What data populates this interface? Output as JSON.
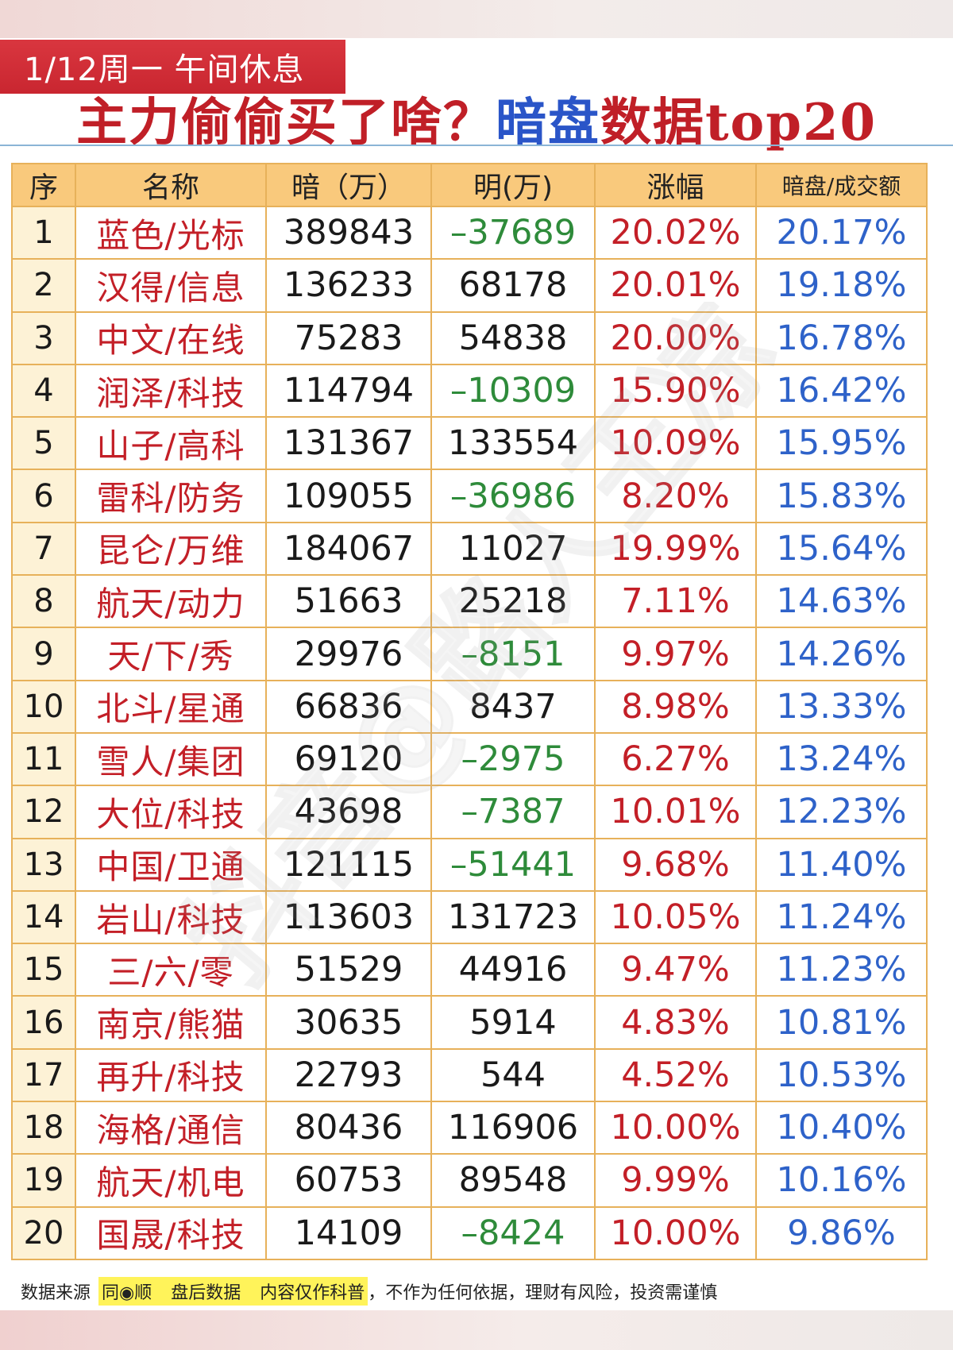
{
  "header": {
    "date_tag": "1/12周一 午间休息",
    "title_part1": "主力偷偷买了啥？",
    "title_part2": "暗盘",
    "title_part3": "数据top20"
  },
  "table": {
    "columns": [
      "序",
      "名称",
      "暗（万）",
      "明(万)",
      "涨幅",
      "暗盘/成交额"
    ],
    "rows": [
      {
        "rank": "1",
        "name": "蓝色/光标",
        "dark": "389843",
        "lit": "–37689",
        "lit_negative": true,
        "change": "20.02%",
        "ratio": "20.17%"
      },
      {
        "rank": "2",
        "name": "汉得/信息",
        "dark": "136233",
        "lit": "68178",
        "lit_negative": false,
        "change": "20.01%",
        "ratio": "19.18%"
      },
      {
        "rank": "3",
        "name": "中文/在线",
        "dark": "75283",
        "lit": "54838",
        "lit_negative": false,
        "change": "20.00%",
        "ratio": "16.78%"
      },
      {
        "rank": "4",
        "name": "润泽/科技",
        "dark": "114794",
        "lit": "–10309",
        "lit_negative": true,
        "change": "15.90%",
        "ratio": "16.42%"
      },
      {
        "rank": "5",
        "name": "山子/高科",
        "dark": "131367",
        "lit": "133554",
        "lit_negative": false,
        "change": "10.09%",
        "ratio": "15.95%"
      },
      {
        "rank": "6",
        "name": "雷科/防务",
        "dark": "109055",
        "lit": "–36986",
        "lit_negative": true,
        "change": "8.20%",
        "ratio": "15.83%"
      },
      {
        "rank": "7",
        "name": "昆仑/万维",
        "dark": "184067",
        "lit": "11027",
        "lit_negative": false,
        "change": "19.99%",
        "ratio": "15.64%"
      },
      {
        "rank": "8",
        "name": "航天/动力",
        "dark": "51663",
        "lit": "25218",
        "lit_negative": false,
        "change": "7.11%",
        "ratio": "14.63%"
      },
      {
        "rank": "9",
        "name": "天/下/秀",
        "dark": "29976",
        "lit": "–8151",
        "lit_negative": true,
        "change": "9.97%",
        "ratio": "14.26%"
      },
      {
        "rank": "10",
        "name": "北斗/星通",
        "dark": "66836",
        "lit": "8437",
        "lit_negative": false,
        "change": "8.98%",
        "ratio": "13.33%"
      },
      {
        "rank": "11",
        "name": "雪人/集团",
        "dark": "69120",
        "lit": "–2975",
        "lit_negative": true,
        "change": "6.27%",
        "ratio": "13.24%"
      },
      {
        "rank": "12",
        "name": "大位/科技",
        "dark": "43698",
        "lit": "–7387",
        "lit_negative": true,
        "change": "10.01%",
        "ratio": "12.23%"
      },
      {
        "rank": "13",
        "name": "中国/卫通",
        "dark": "121115",
        "lit": "–51441",
        "lit_negative": true,
        "change": "9.68%",
        "ratio": "11.40%"
      },
      {
        "rank": "14",
        "name": "岩山/科技",
        "dark": "113603",
        "lit": "131723",
        "lit_negative": false,
        "change": "10.05%",
        "ratio": "11.24%"
      },
      {
        "rank": "15",
        "name": "三/六/零",
        "dark": "51529",
        "lit": "44916",
        "lit_negative": false,
        "change": "9.47%",
        "ratio": "11.23%"
      },
      {
        "rank": "16",
        "name": "南京/熊猫",
        "dark": "30635",
        "lit": "5914",
        "lit_negative": false,
        "change": "4.83%",
        "ratio": "10.81%"
      },
      {
        "rank": "17",
        "name": "再升/科技",
        "dark": "22793",
        "lit": "544",
        "lit_negative": false,
        "change": "4.52%",
        "ratio": "10.53%"
      },
      {
        "rank": "18",
        "name": "海格/通信",
        "dark": "80436",
        "lit": "116906",
        "lit_negative": false,
        "change": "10.00%",
        "ratio": "10.40%"
      },
      {
        "rank": "19",
        "name": "航天/机电",
        "dark": "60753",
        "lit": "89548",
        "lit_negative": false,
        "change": "9.99%",
        "ratio": "10.16%"
      },
      {
        "rank": "20",
        "name": "国晟/科技",
        "dark": "14109",
        "lit": "–8424",
        "lit_negative": true,
        "change": "10.00%",
        "ratio": "9.86%"
      }
    ]
  },
  "footer": {
    "prefix": "数据来源",
    "source": "同◉顺",
    "after_hours": "盘后数据",
    "science": "内容仅作科普",
    "disclaimer": "，不作为任何依据，理财有风险，投资需谨慎"
  },
  "watermark": {
    "text": "抖音@路人王凉"
  },
  "colors": {
    "brand_red": "#c01f27",
    "accent_blue": "#2a55c8",
    "negative_green": "#2e8b3a",
    "header_orange": "#f9c97c",
    "border_gold": "#e7b15a",
    "highlight_yellow": "#fff35a"
  }
}
